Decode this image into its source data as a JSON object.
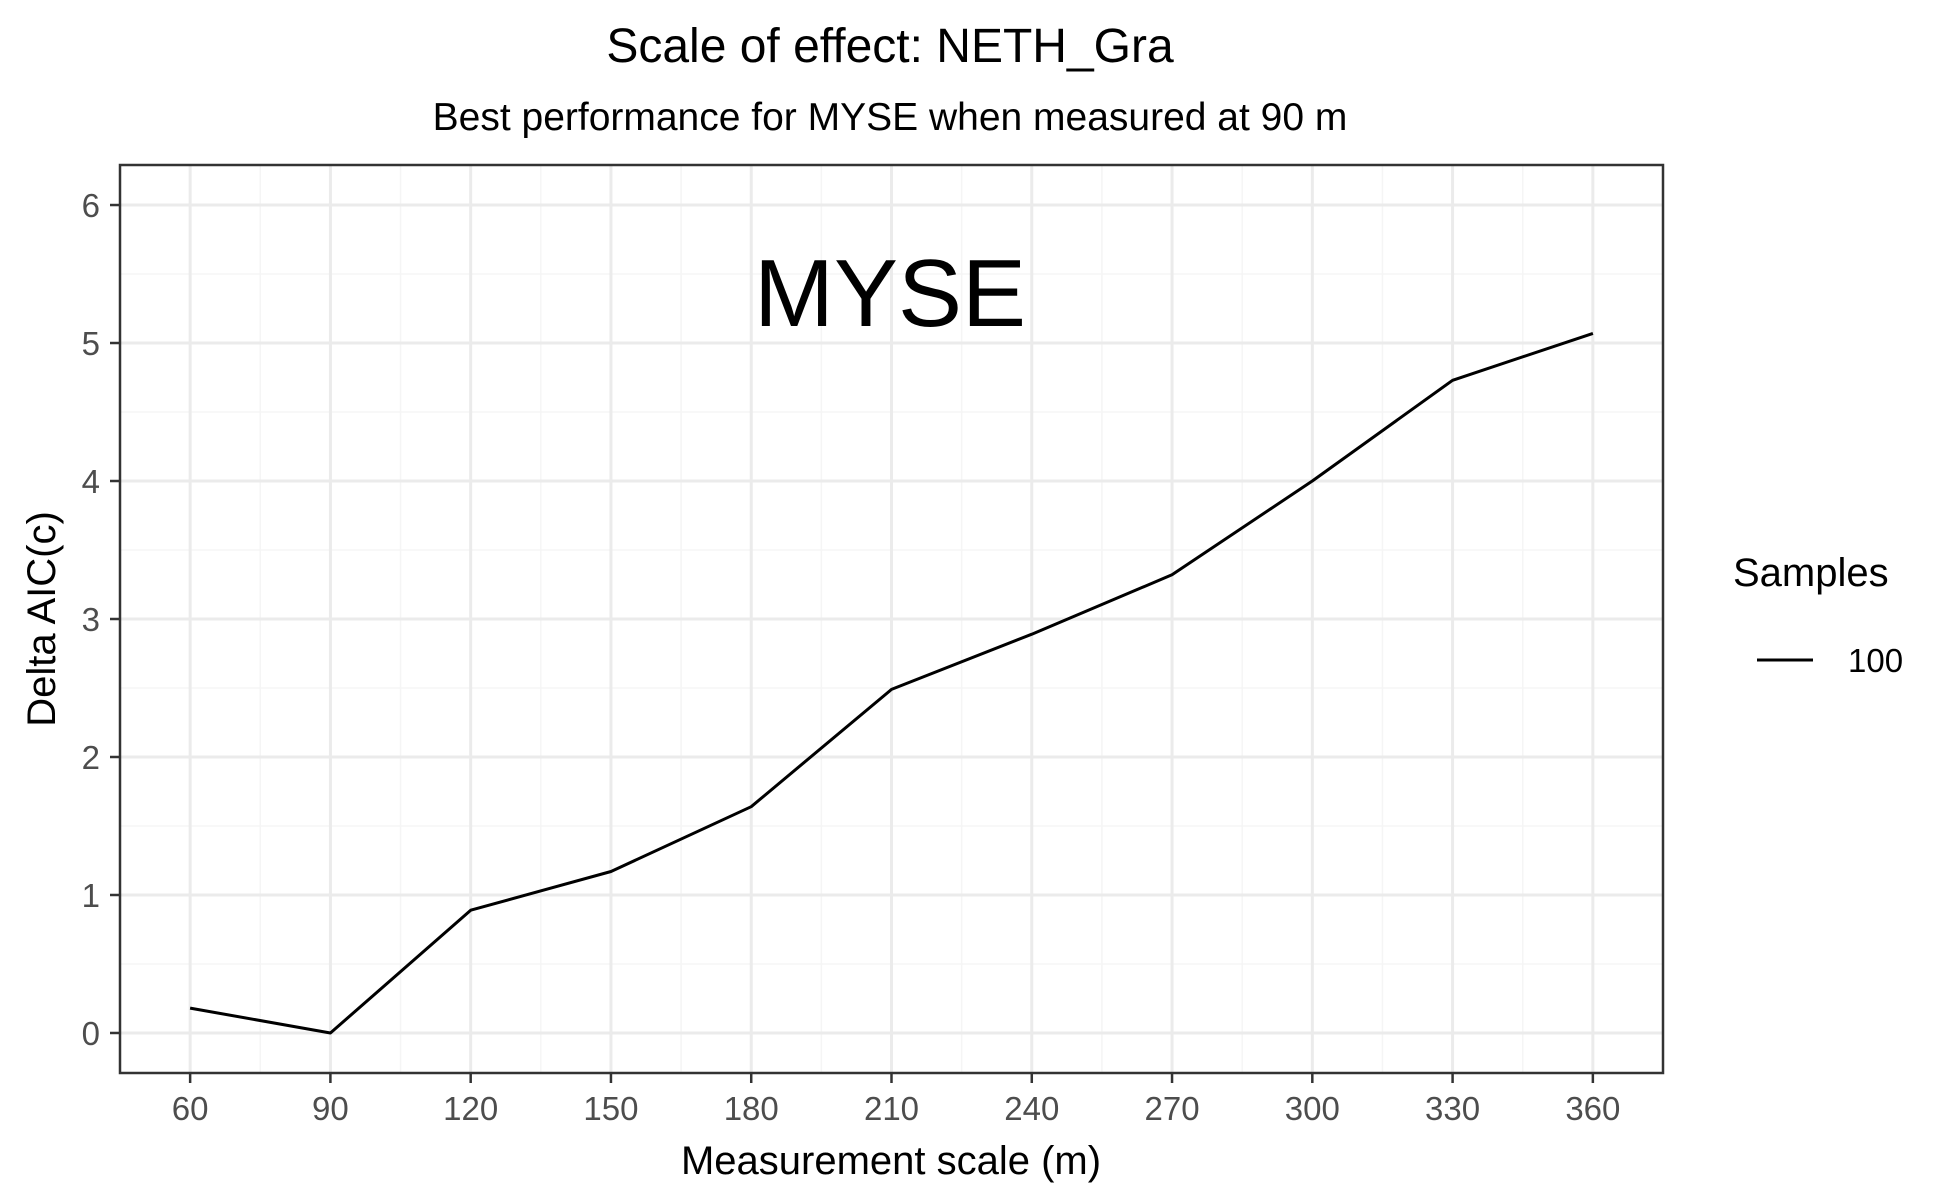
{
  "chart_data": {
    "type": "line",
    "title": "Scale of effect: NETH_Gra",
    "subtitle": "Best performance for MYSE when measured at 90 m",
    "xlabel": "Measurement scale (m)",
    "ylabel": "Delta AIC(c)",
    "annotation": "MYSE",
    "x": [
      60,
      90,
      120,
      150,
      180,
      210,
      240,
      270,
      300,
      330,
      360
    ],
    "xticks": [
      "60",
      "90",
      "120",
      "150",
      "180",
      "210",
      "240",
      "270",
      "300",
      "330",
      "360"
    ],
    "yticks": [
      "0",
      "1",
      "2",
      "3",
      "4",
      "5",
      "6"
    ],
    "xlim": [
      45,
      375
    ],
    "ylim": [
      -0.29,
      6.29
    ],
    "grid": true,
    "legend": {
      "title": "Samples",
      "placement": "right"
    },
    "series": [
      {
        "name": "100",
        "color": "#000000",
        "values": [
          0.18,
          0.0,
          0.89,
          1.17,
          1.64,
          2.49,
          2.89,
          3.32,
          4.0,
          4.73,
          5.07
        ]
      }
    ]
  }
}
